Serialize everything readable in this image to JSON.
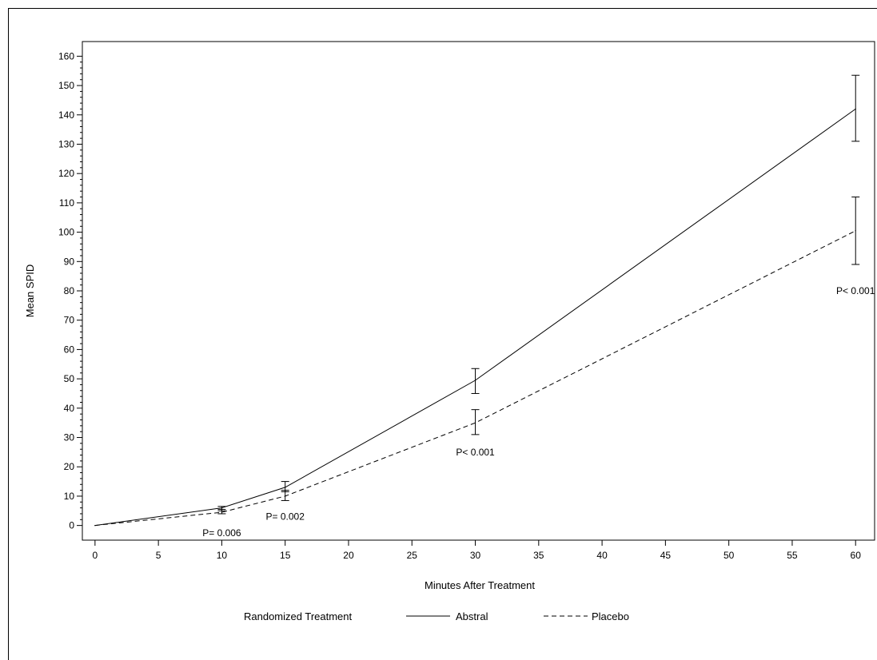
{
  "chart_data": {
    "type": "line",
    "title": "",
    "xlabel": "Minutes After Treatment",
    "ylabel": "Mean SPID",
    "x": [
      0,
      10,
      15,
      30,
      60
    ],
    "xlim": [
      -1,
      61.5
    ],
    "ylim": [
      -5,
      165
    ],
    "x_ticks": [
      0,
      5,
      10,
      15,
      20,
      25,
      30,
      35,
      40,
      45,
      50,
      55,
      60
    ],
    "y_ticks": [
      0,
      10,
      20,
      30,
      40,
      50,
      60,
      70,
      80,
      90,
      100,
      110,
      120,
      130,
      140,
      150,
      160
    ],
    "y_minor_ticks_per_major": 4,
    "grid": false,
    "series": [
      {
        "name": "Abstral",
        "line_style": "solid",
        "values": [
          0,
          6,
          13,
          49.5,
          142
        ],
        "error_low": [
          0,
          5,
          11.5,
          45,
          131
        ],
        "error_high": [
          0,
          6.5,
          15,
          53.5,
          153.5
        ]
      },
      {
        "name": "Placebo",
        "line_style": "dashed",
        "values": [
          0,
          4.5,
          10,
          35,
          100.5
        ],
        "error_low": [
          0,
          4,
          8.5,
          31,
          89
        ],
        "error_high": [
          0,
          5.5,
          12,
          39.5,
          112
        ]
      }
    ],
    "annotations": [
      {
        "text": "P= 0.006",
        "x": 10,
        "y": -2.5
      },
      {
        "text": "P= 0.002",
        "x": 15,
        "y": 3
      },
      {
        "text": "P< 0.001",
        "x": 30,
        "y": 25
      },
      {
        "text": "P< 0.001",
        "x": 60,
        "y": 80
      }
    ],
    "legend": {
      "position": "bottom",
      "title": "Randomized Treatment",
      "entries": [
        "Abstral",
        "Placebo"
      ]
    }
  }
}
